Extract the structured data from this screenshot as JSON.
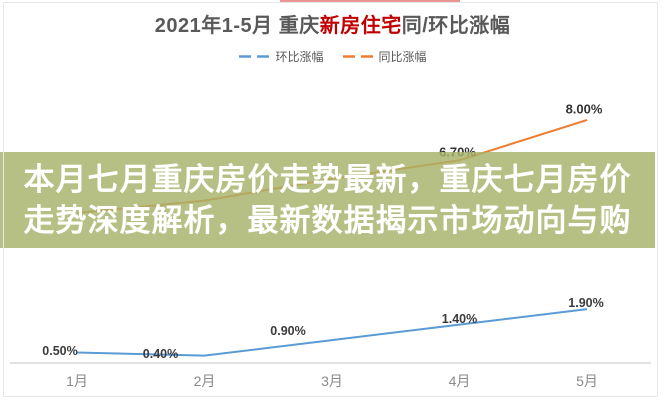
{
  "page": {
    "top_progress_color": "#e05b5b",
    "overlay_bg": "rgba(167,178,105,0.82)"
  },
  "overlay": {
    "line1": "本月七月重庆房价走势最新，重庆七月房价",
    "line2": "走势深度解析，最新数据揭示市场动向与购"
  },
  "chart": {
    "title_prefix": "2021年1-5月 重庆",
    "title_highlight": "新房住宅",
    "title_suffix": "同/环比涨幅",
    "title_highlight_color": "#c00000"
  },
  "chart_data": {
    "type": "line",
    "title": "2021年1-5月 重庆新房住宅同/环比涨幅",
    "xlabel": "",
    "ylabel": "",
    "categories": [
      "1月",
      "2月",
      "3月",
      "4月",
      "5月"
    ],
    "series": [
      {
        "name": "环比涨幅",
        "color": "#5b9bd5",
        "style": "solid",
        "values": [
          0.5,
          0.4,
          0.9,
          1.4,
          1.9
        ],
        "labels": [
          "0.50%",
          "0.40%",
          "0.90%",
          "1.40%",
          "1.90%"
        ]
      },
      {
        "name": "同比涨幅",
        "color": "#ed7d31",
        "style": "solid",
        "values": [
          5.0,
          5.4,
          6.1,
          6.7,
          8.0
        ],
        "labels": [
          "",
          "",
          "",
          "6.70%",
          "8.00%"
        ],
        "note": "values for 1月-3月 estimated from line position; labels obscured by headline overlay"
      }
    ],
    "ylim": [
      0,
      9
    ],
    "grid": false,
    "legend_position": "top",
    "legend": [
      {
        "label": "环比涨幅",
        "color": "#5b9bd5"
      },
      {
        "label": "同比涨幅",
        "color": "#ed7d31"
      }
    ]
  }
}
